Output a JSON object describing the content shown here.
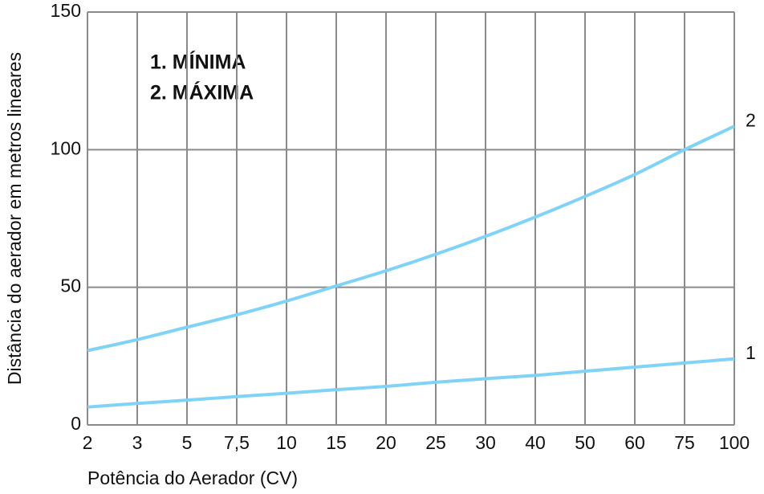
{
  "chart_data": {
    "type": "line",
    "x_label": "Potência do Aerador (CV)",
    "y_label": "Distância do aerador em metros lineares",
    "annotations": [
      "1. MÍNIMA",
      "2. MÁXIMA"
    ],
    "categories": [
      "2",
      "3",
      "5",
      "7,5",
      "10",
      "15",
      "20",
      "25",
      "30",
      "40",
      "50",
      "60",
      "75",
      "100"
    ],
    "series": [
      {
        "name": "1",
        "color": "#7fd3f7",
        "values": [
          6.5,
          7.8,
          9,
          10.3,
          11.5,
          12.8,
          14,
          15.5,
          16.8,
          18,
          19.5,
          21,
          22.5,
          24
        ]
      },
      {
        "name": "2",
        "color": "#7fd3f7",
        "values": [
          27,
          31,
          35.5,
          40,
          45,
          50.5,
          56,
          62,
          68.5,
          75.5,
          83,
          91,
          100,
          108.5
        ]
      }
    ],
    "ylim": [
      0,
      150
    ],
    "yticks": [
      0,
      50,
      100,
      150
    ],
    "grid": true
  }
}
